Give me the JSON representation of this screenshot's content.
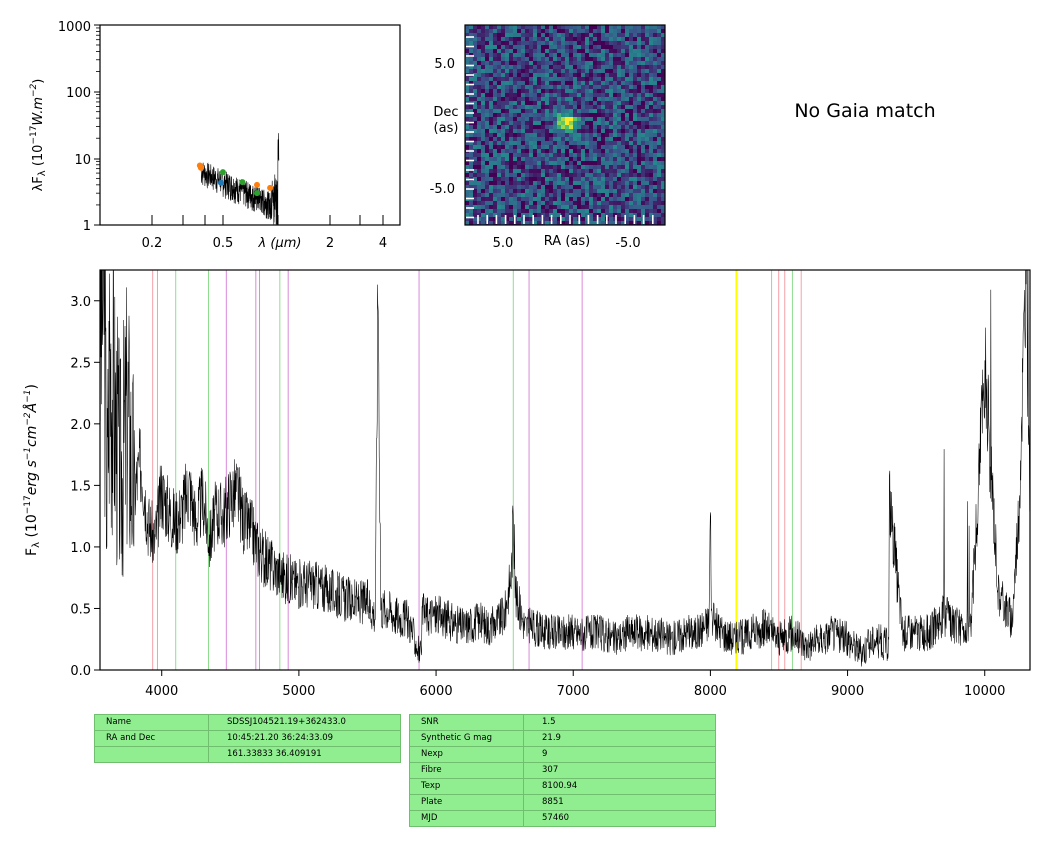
{
  "gaia_text": "No Gaia match",
  "sed": {
    "ylabel": "λF_λ (10^-17 W.m^-2)",
    "yticks": [
      "1",
      "10",
      "100",
      "1000"
    ],
    "xticks": [
      "0.2",
      "0.5",
      "2",
      "4"
    ],
    "xlabel": "λ (μm)",
    "points": [
      {
        "x": 0.355,
        "y": 7.8,
        "color": "#ff7f0e"
      },
      {
        "x": 0.36,
        "y": 7.2,
        "color": "#ff7f0e"
      },
      {
        "x": 0.468,
        "y": 4.3,
        "color": "#1f77b4"
      },
      {
        "x": 0.48,
        "y": 6.2,
        "color": "#2ca02c"
      },
      {
        "x": 0.62,
        "y": 4.4,
        "color": "#2ca02c"
      },
      {
        "x": 0.75,
        "y": 4.0,
        "color": "#ff7f0e"
      },
      {
        "x": 0.75,
        "y": 3.0,
        "color": "#2ca02c"
      },
      {
        "x": 0.89,
        "y": 3.6,
        "color": "#ff7f0e"
      }
    ]
  },
  "image": {
    "ylabel": "Dec (as)",
    "xlabel": "RA (as)",
    "xticks": [
      "5.0",
      "-5.0"
    ],
    "yticks": [
      "5.0",
      "-5.0"
    ]
  },
  "chart_data": {
    "type": "line",
    "xlabel": "",
    "ylabel": "F_λ (10^-17 erg s^-1 cm^-2 Å^-1)",
    "xlim": [
      3550,
      10330
    ],
    "ylim": [
      0,
      3.25
    ],
    "xticks": [
      "4000",
      "5000",
      "6000",
      "7000",
      "8000",
      "9000",
      "10000"
    ],
    "yticks": [
      "0.0",
      "0.5",
      "1.0",
      "1.5",
      "2.0",
      "2.5",
      "3.0"
    ],
    "lines": {
      "pink": [
        3934,
        3969,
        8498,
        8542,
        8662
      ],
      "green": [
        4102,
        4341,
        4861,
        6563,
        8446,
        8598
      ],
      "violet": [
        4471,
        4686,
        4713,
        4922,
        5876,
        6678,
        7065
      ],
      "yellow": [
        8190
      ]
    },
    "series": [
      {
        "x": [
          3560,
          3580,
          3600,
          3620,
          3650,
          3700,
          3750,
          3800,
          3850,
          3900,
          3950,
          4000,
          4050,
          4100,
          4150,
          4200,
          4250,
          4300,
          4350,
          4400,
          4450,
          4500,
          4550,
          4600,
          4650,
          4700,
          4750,
          4800,
          4850,
          4900,
          5000,
          5100,
          5200,
          5300,
          5400,
          5500,
          5557,
          5577,
          5597,
          5650,
          5700,
          5800,
          5889,
          5900,
          6000,
          6100,
          6200,
          6300,
          6400,
          6500,
          6550,
          6563,
          6580,
          6650,
          6700,
          6800,
          6900,
          7000,
          7100,
          7200,
          7300,
          7400,
          7500,
          7600,
          7700,
          7800,
          7900,
          7990,
          8000,
          8010,
          8100,
          8190,
          8300,
          8400,
          8500,
          8600,
          8700,
          8800,
          8900,
          9000,
          9100,
          9200,
          9300,
          9305,
          9400,
          9500,
          9600,
          9700,
          9800,
          9900,
          10000,
          10100,
          10200,
          10250,
          10300,
          10330
        ],
        "y": [
          2.9,
          3.2,
          1.3,
          2.6,
          2.2,
          1.6,
          2.1,
          1.45,
          1.7,
          1.2,
          1.05,
          1.45,
          1.3,
          1.2,
          1.3,
          1.5,
          1.2,
          1.4,
          1.05,
          1.3,
          1.25,
          1.4,
          1.45,
          1.2,
          1.15,
          1.0,
          0.9,
          0.85,
          0.8,
          0.75,
          0.7,
          0.7,
          0.65,
          0.6,
          0.55,
          0.55,
          0.45,
          3.25,
          0.5,
          0.5,
          0.45,
          0.4,
          0.1,
          0.45,
          0.45,
          0.4,
          0.35,
          0.4,
          0.35,
          0.45,
          0.8,
          1.3,
          0.6,
          0.35,
          0.35,
          0.3,
          0.3,
          0.3,
          0.3,
          0.3,
          0.25,
          0.3,
          0.3,
          0.3,
          0.25,
          0.3,
          0.3,
          0.4,
          1.3,
          0.4,
          0.3,
          0.25,
          0.3,
          0.35,
          0.25,
          0.3,
          0.2,
          0.25,
          0.3,
          0.25,
          0.15,
          0.25,
          0.2,
          1.4,
          0.3,
          0.3,
          0.3,
          0.45,
          0.35,
          0.35,
          2.5,
          0.6,
          0.4,
          1.3,
          3.25,
          1.4
        ]
      }
    ]
  },
  "table1": {
    "rows": [
      {
        "k": "Name",
        "v": "SDSSJ104521.19+362433.0"
      },
      {
        "k": "RA and Dec",
        "v": "10:45:21.20    36:24:33.09"
      },
      {
        "k": "",
        "v": "161.33833    36.409191"
      }
    ]
  },
  "table2": {
    "rows": [
      {
        "k": "SNR",
        "v": "1.5"
      },
      {
        "k": "Synthetic G mag",
        "v": "21.9"
      },
      {
        "k": "Nexp",
        "v": "9"
      },
      {
        "k": "Fibre",
        "v": "307"
      },
      {
        "k": "Texp",
        "v": "8100.94"
      },
      {
        "k": "Plate",
        "v": "8851"
      },
      {
        "k": "MJD",
        "v": "57460"
      }
    ]
  }
}
